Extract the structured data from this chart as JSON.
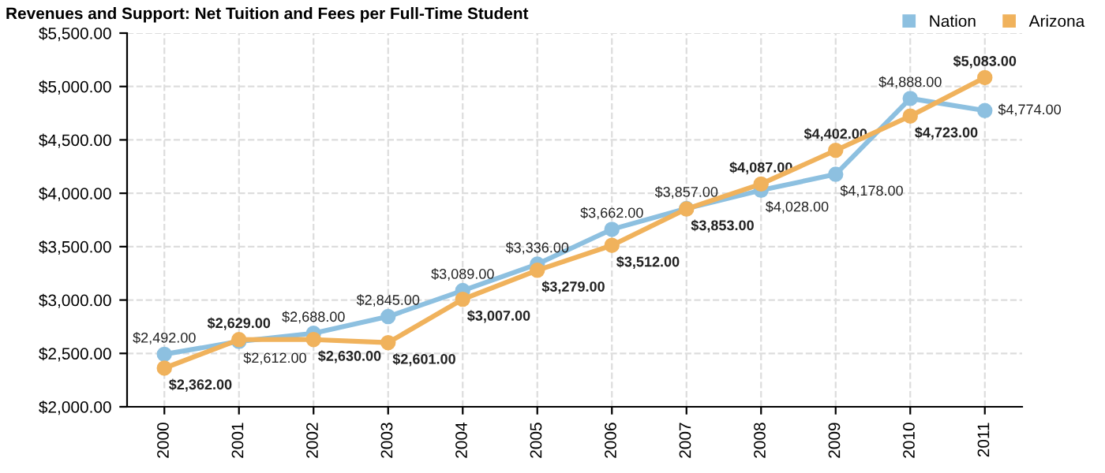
{
  "chart_data": {
    "type": "line",
    "title": "Revenues and Support: Net Tuition and Fees per Full-Time Student",
    "categories": [
      "2000",
      "2001",
      "2002",
      "2003",
      "2004",
      "2005",
      "2006",
      "2007",
      "2008",
      "2009",
      "2010",
      "2011"
    ],
    "series": [
      {
        "name": "Nation",
        "color": "#8dc0e0",
        "values": [
          2492,
          2612,
          2688,
          2845,
          3089,
          3336,
          3662,
          3857,
          4028,
          4178,
          4888,
          4774
        ],
        "value_labels": [
          "$2,492.00",
          "$2,612.00",
          "$2,688.00",
          "$2,845.00",
          "$3,089.00",
          "$3,336.00",
          "$3,662.00",
          "$3,857.00",
          "$4,028.00",
          "$4,178.00",
          "$4,888.00",
          "$4,774.00"
        ]
      },
      {
        "name": "Arizona",
        "color": "#f0b25c",
        "values": [
          2362,
          2629,
          2630,
          2601,
          3007,
          3279,
          3512,
          3853,
          4087,
          4402,
          4723,
          5083
        ],
        "value_labels": [
          "$2,362.00",
          "$2,629.00",
          "$2,630.00",
          "$2,601.00",
          "$3,007.00",
          "$3,279.00",
          "$3,512.00",
          "$3,853.00",
          "$4,087.00",
          "$4,402.00",
          "$4,723.00",
          "$5,083.00"
        ]
      }
    ],
    "ylim": [
      2000,
      5500
    ],
    "yticks": [
      {
        "value": 2000,
        "label": "$2,000.00"
      },
      {
        "value": 2500,
        "label": "$2,500.00"
      },
      {
        "value": 3000,
        "label": "$3,000.00"
      },
      {
        "value": 3500,
        "label": "$3,500.00"
      },
      {
        "value": 4000,
        "label": "$4,000.00"
      },
      {
        "value": 4500,
        "label": "$4,500.00"
      },
      {
        "value": 5000,
        "label": "$5,000.00"
      },
      {
        "value": 5500,
        "label": "$5,500.00"
      }
    ],
    "grid": true,
    "legend": "top right",
    "marker": "circle",
    "line_style": "solid"
  }
}
